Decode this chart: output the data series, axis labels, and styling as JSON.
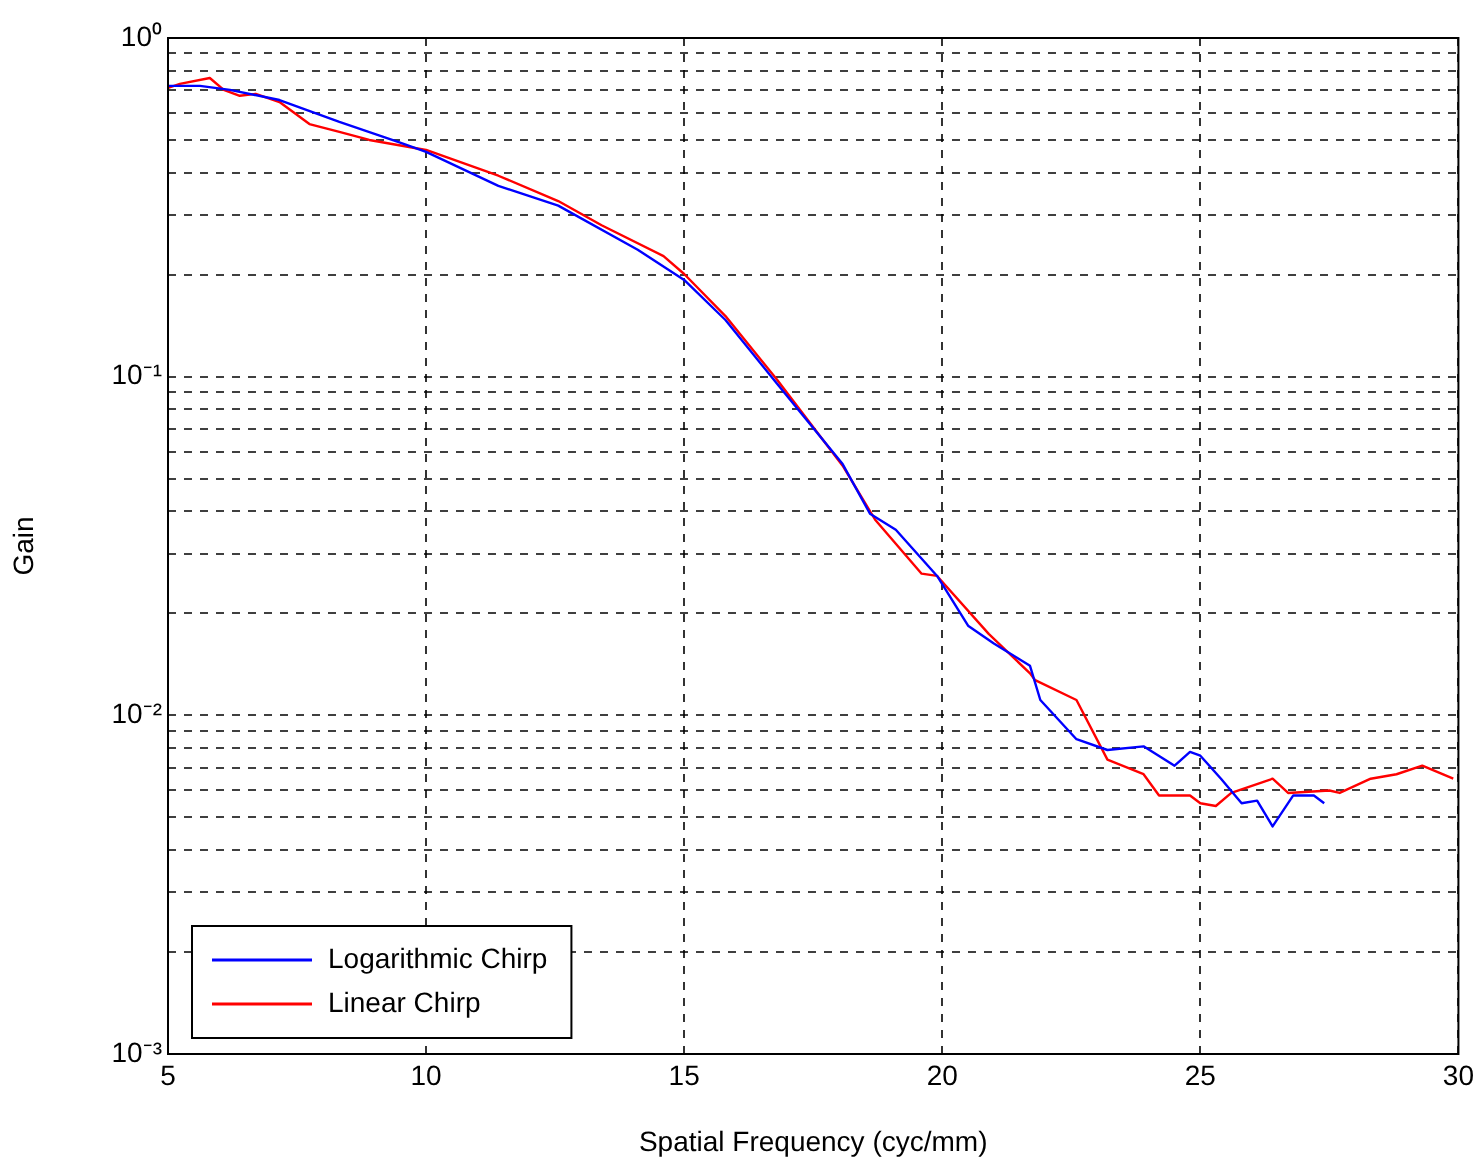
{
  "chart_data": {
    "type": "line",
    "xlabel": "Spatial Frequency (cyc/mm)",
    "ylabel": "Gain",
    "log": "y",
    "grid": true,
    "legend": "bottom left",
    "marker": "none",
    "line_style": "solid",
    "xlim": [
      5,
      30
    ],
    "xticks": [
      5,
      10,
      15,
      20,
      25,
      30
    ],
    "ylim": [
      0.001,
      1
    ],
    "yticks": [
      {
        "value": 0.001,
        "label": "10⁻³"
      },
      {
        "value": 0.002,
        "label": null
      },
      {
        "value": 0.003,
        "label": null
      },
      {
        "value": 0.004,
        "label": null
      },
      {
        "value": 0.005,
        "label": null
      },
      {
        "value": 0.006,
        "label": null
      },
      {
        "value": 0.007,
        "label": null
      },
      {
        "value": 0.008,
        "label": null
      },
      {
        "value": 0.009,
        "label": null
      },
      {
        "value": 0.01,
        "label": "10⁻²"
      },
      {
        "value": 0.02,
        "label": null
      },
      {
        "value": 0.03,
        "label": null
      },
      {
        "value": 0.04,
        "label": null
      },
      {
        "value": 0.05,
        "label": null
      },
      {
        "value": 0.06,
        "label": null
      },
      {
        "value": 0.07,
        "label": null
      },
      {
        "value": 0.08,
        "label": null
      },
      {
        "value": 0.09,
        "label": null
      },
      {
        "value": 0.1,
        "label": "10⁻¹"
      },
      {
        "value": 0.2,
        "label": null
      },
      {
        "value": 0.3,
        "label": null
      },
      {
        "value": 0.4,
        "label": null
      },
      {
        "value": 0.5,
        "label": null
      },
      {
        "value": 0.6,
        "label": null
      },
      {
        "value": 0.7,
        "label": null
      },
      {
        "value": 0.8,
        "label": null
      },
      {
        "value": 0.9,
        "label": null
      },
      {
        "value": 1,
        "label": "10⁰"
      }
    ],
    "series": [
      {
        "name": "Logarithmic Chirp",
        "color": "#0000ff",
        "x": [
          5,
          5.62,
          6.2,
          7.16,
          8.32,
          9.47,
          10,
          11.4,
          12.56,
          14.1,
          15,
          15.8,
          16.8,
          18.07,
          18.6,
          19.1,
          19.9,
          20.5,
          21.0,
          21.7,
          21.9,
          22.6,
          23.2,
          23.9,
          24.5,
          24.8,
          25.0,
          25.4,
          25.8,
          26.1,
          26.4,
          26.8,
          27.2,
          27.4
        ],
        "values": [
          0.722,
          0.722,
          0.703,
          0.656,
          0.565,
          0.493,
          0.461,
          0.366,
          0.32,
          0.237,
          0.193,
          0.147,
          0.0953,
          0.0552,
          0.0394,
          0.0353,
          0.0258,
          0.0184,
          0.0163,
          0.014,
          0.0111,
          0.0085,
          0.0079,
          0.0081,
          0.0071,
          0.0078,
          0.0076,
          0.0065,
          0.0055,
          0.0056,
          0.0047,
          0.0058,
          0.0058,
          0.0055
        ]
      },
      {
        "name": "Linear Chirp",
        "color": "#ff0000",
        "x": [
          5,
          5.23,
          5.81,
          6.08,
          6.39,
          6.7,
          7.16,
          7.74,
          8.32,
          8.9,
          10,
          11.4,
          12.56,
          13.4,
          14.6,
          15,
          15.8,
          16.8,
          18.07,
          18.7,
          19.6,
          19.9,
          20.9,
          21.7,
          21.8,
          22.6,
          23.2,
          23.9,
          24.2,
          24.8,
          25.0,
          25.3,
          25.6,
          26.4,
          26.7,
          27.5,
          27.7,
          28.3,
          28.8,
          29.3,
          29.9
        ],
        "values": [
          0.712,
          0.732,
          0.762,
          0.703,
          0.675,
          0.684,
          0.647,
          0.557,
          0.528,
          0.5,
          0.467,
          0.392,
          0.33,
          0.28,
          0.227,
          0.201,
          0.151,
          0.0979,
          0.0546,
          0.0378,
          0.0262,
          0.0258,
          0.0174,
          0.0133,
          0.0127,
          0.0111,
          0.0074,
          0.0067,
          0.0058,
          0.0058,
          0.0055,
          0.0054,
          0.0059,
          0.0065,
          0.0059,
          0.006,
          0.0059,
          0.0065,
          0.0067,
          0.0071,
          0.0065
        ]
      }
    ]
  }
}
